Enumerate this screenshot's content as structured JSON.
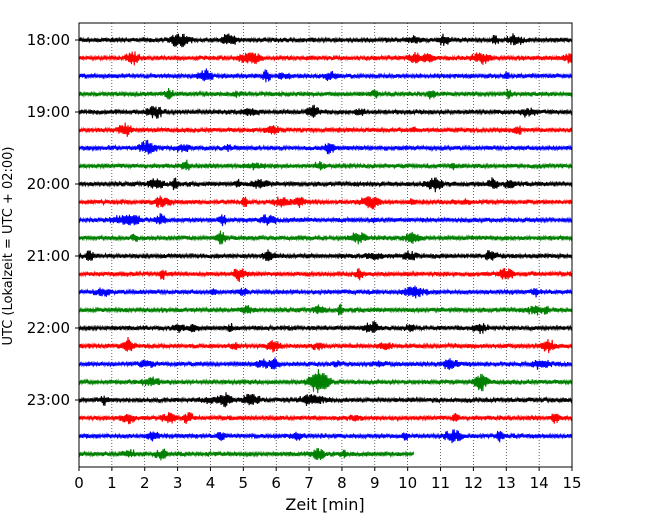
{
  "chart_data": {
    "type": "line",
    "subtype": "helicorder",
    "title": "",
    "xlabel": "Zeit  [min]",
    "ylabel": "UTC (Lokalzeit = UTC + 02:00)",
    "xlim": [
      0,
      15
    ],
    "xticks": [
      0,
      1,
      2,
      3,
      4,
      5,
      6,
      7,
      8,
      9,
      10,
      11,
      12,
      13,
      14,
      15
    ],
    "y_tick_labels": [
      "18:00",
      "19:00",
      "20:00",
      "21:00",
      "22:00",
      "23:00"
    ],
    "trace_interval_minutes": 15,
    "x_grid": "dotted vertical lines at each minute",
    "colors_cycle": [
      "#000000",
      "#ff0000",
      "#0000ff",
      "#008000"
    ],
    "traces": [
      {
        "start": "18:00",
        "color": "#000000",
        "end_minute": 15
      },
      {
        "start": "18:15",
        "color": "#ff0000",
        "end_minute": 15
      },
      {
        "start": "18:30",
        "color": "#0000ff",
        "end_minute": 15
      },
      {
        "start": "18:45",
        "color": "#008000",
        "end_minute": 15
      },
      {
        "start": "19:00",
        "color": "#000000",
        "end_minute": 15
      },
      {
        "start": "19:15",
        "color": "#ff0000",
        "end_minute": 15
      },
      {
        "start": "19:30",
        "color": "#0000ff",
        "end_minute": 15
      },
      {
        "start": "19:45",
        "color": "#008000",
        "end_minute": 15
      },
      {
        "start": "20:00",
        "color": "#000000",
        "end_minute": 15
      },
      {
        "start": "20:15",
        "color": "#ff0000",
        "end_minute": 15
      },
      {
        "start": "20:30",
        "color": "#0000ff",
        "end_minute": 15
      },
      {
        "start": "20:45",
        "color": "#008000",
        "end_minute": 15
      },
      {
        "start": "21:00",
        "color": "#000000",
        "end_minute": 15
      },
      {
        "start": "21:15",
        "color": "#ff0000",
        "end_minute": 15
      },
      {
        "start": "21:30",
        "color": "#0000ff",
        "end_minute": 15
      },
      {
        "start": "21:45",
        "color": "#008000",
        "end_minute": 15
      },
      {
        "start": "22:00",
        "color": "#000000",
        "end_minute": 15
      },
      {
        "start": "22:15",
        "color": "#ff0000",
        "end_minute": 15
      },
      {
        "start": "22:30",
        "color": "#0000ff",
        "end_minute": 15
      },
      {
        "start": "22:45",
        "color": "#008000",
        "end_minute": 15
      },
      {
        "start": "23:00",
        "color": "#000000",
        "end_minute": 15
      },
      {
        "start": "23:15",
        "color": "#ff0000",
        "end_minute": 15
      },
      {
        "start": "23:30",
        "color": "#0000ff",
        "end_minute": 15
      },
      {
        "start": "23:45",
        "color": "#008000",
        "end_minute": 10.2
      }
    ]
  }
}
